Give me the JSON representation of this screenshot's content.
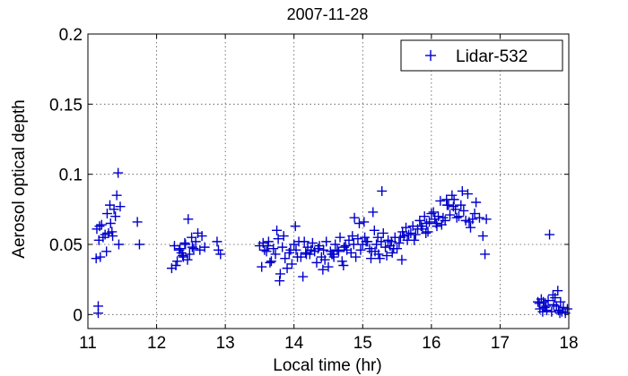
{
  "chart_data": {
    "type": "scatter",
    "title": "2007-11-28",
    "xlabel": "Local time (hr)",
    "ylabel": "Aerosol optical depth",
    "xlim": [
      11,
      18
    ],
    "ylim": [
      -0.01,
      0.2
    ],
    "xticks": [
      11,
      12,
      13,
      14,
      15,
      16,
      17,
      18
    ],
    "xtick_labels": [
      "11",
      "12",
      "13",
      "14",
      "15",
      "16",
      "17",
      "18"
    ],
    "yticks": [
      0,
      0.05,
      0.1,
      0.15,
      0.2
    ],
    "ytick_labels": [
      "0",
      "0.05",
      "0.1",
      "0.15",
      "0.2"
    ],
    "grid": true,
    "legend_position": "top-right",
    "series": [
      {
        "name": "Lidar-532",
        "marker": "plus",
        "color": "#0000cc",
        "x": [
          11.12,
          11.15,
          11.17,
          11.2,
          11.22,
          11.25,
          11.28,
          11.3,
          11.32,
          11.35,
          11.38,
          11.4,
          11.42,
          11.45,
          11.47,
          11.15,
          11.18,
          11.27,
          11.33,
          11.36,
          11.44,
          11.72,
          11.75,
          11.13,
          11.16,
          12.22,
          12.26,
          12.3,
          12.33,
          12.36,
          12.39,
          12.42,
          12.45,
          12.48,
          12.51,
          12.54,
          12.57,
          12.6,
          12.63,
          12.66,
          12.7,
          12.28,
          12.38,
          12.46,
          12.41,
          12.88,
          12.9,
          12.93,
          12.34,
          12.52,
          13.5,
          13.53,
          13.57,
          13.6,
          13.63,
          13.67,
          13.7,
          13.73,
          13.77,
          13.8,
          13.83,
          13.87,
          13.9,
          13.93,
          13.97,
          14.0,
          14.03,
          14.07,
          14.1,
          14.13,
          14.17,
          14.2,
          14.23,
          14.27,
          14.3,
          14.33,
          14.37,
          14.4,
          14.43,
          14.47,
          14.5,
          14.53,
          14.57,
          14.6,
          14.63,
          14.67,
          14.7,
          14.73,
          14.77,
          14.8,
          13.55,
          13.65,
          13.75,
          13.85,
          13.95,
          14.05,
          14.15,
          14.25,
          14.35,
          14.45,
          14.55,
          14.65,
          14.75,
          13.79,
          14.02,
          14.18,
          14.42,
          14.58,
          14.72,
          13.62,
          14.83,
          14.87,
          14.9,
          14.93,
          14.97,
          15.0,
          15.03,
          15.07,
          15.1,
          15.13,
          15.17,
          15.2,
          15.23,
          15.27,
          15.3,
          15.33,
          15.37,
          15.4,
          15.43,
          15.47,
          15.5,
          15.53,
          15.57,
          15.6,
          15.63,
          15.67,
          15.7,
          15.73,
          15.77,
          15.8,
          14.85,
          14.95,
          15.05,
          15.15,
          15.25,
          15.35,
          15.45,
          15.55,
          15.65,
          15.75,
          15.02,
          15.22,
          15.28,
          15.42,
          15.58,
          14.88,
          15.12,
          15.18,
          15.83,
          15.87,
          15.9,
          15.93,
          15.97,
          16.0,
          16.03,
          16.07,
          16.1,
          16.13,
          16.17,
          16.2,
          16.23,
          16.27,
          16.3,
          16.33,
          16.37,
          16.4,
          16.43,
          16.47,
          16.5,
          16.53,
          16.57,
          16.6,
          16.63,
          16.7,
          16.75,
          16.8,
          15.85,
          15.95,
          16.05,
          16.15,
          16.25,
          16.35,
          16.45,
          16.55,
          16.65,
          16.22,
          16.78,
          15.92,
          16.08,
          16.32,
          17.55,
          17.58,
          17.6,
          17.62,
          17.65,
          17.68,
          17.7,
          17.72,
          17.75,
          17.78,
          17.8,
          17.82,
          17.85,
          17.88,
          17.9,
          17.92,
          17.95,
          17.98,
          17.57,
          17.67,
          17.77,
          17.87,
          17.63,
          17.84
        ],
        "y": [
          0.04,
          0.006,
          0.063,
          0.064,
          0.055,
          0.057,
          0.072,
          0.058,
          0.078,
          0.059,
          0.075,
          0.07,
          0.085,
          0.05,
          0.077,
          0.001,
          0.041,
          0.045,
          0.065,
          0.056,
          0.101,
          0.066,
          0.05,
          0.061,
          0.053,
          0.033,
          0.049,
          0.038,
          0.046,
          0.044,
          0.041,
          0.05,
          0.039,
          0.043,
          0.055,
          0.047,
          0.052,
          0.058,
          0.046,
          0.056,
          0.048,
          0.035,
          0.042,
          0.068,
          0.051,
          0.052,
          0.046,
          0.043,
          0.047,
          0.048,
          0.049,
          0.034,
          0.046,
          0.045,
          0.052,
          0.038,
          0.047,
          0.043,
          0.054,
          0.029,
          0.048,
          0.04,
          0.033,
          0.044,
          0.036,
          0.05,
          0.046,
          0.052,
          0.041,
          0.027,
          0.044,
          0.048,
          0.043,
          0.051,
          0.045,
          0.037,
          0.049,
          0.041,
          0.046,
          0.052,
          0.034,
          0.045,
          0.043,
          0.05,
          0.046,
          0.055,
          0.038,
          0.048,
          0.046,
          0.053,
          0.051,
          0.037,
          0.06,
          0.056,
          0.046,
          0.041,
          0.052,
          0.046,
          0.047,
          0.039,
          0.043,
          0.045,
          0.049,
          0.024,
          0.063,
          0.043,
          0.032,
          0.041,
          0.035,
          0.049,
          0.044,
          0.05,
          0.041,
          0.054,
          0.046,
          0.05,
          0.055,
          0.052,
          0.047,
          0.045,
          0.06,
          0.05,
          0.043,
          0.052,
          0.058,
          0.048,
          0.053,
          0.049,
          0.044,
          0.055,
          0.047,
          0.051,
          0.039,
          0.056,
          0.062,
          0.057,
          0.058,
          0.063,
          0.057,
          0.061,
          0.056,
          0.065,
          0.052,
          0.073,
          0.04,
          0.042,
          0.047,
          0.055,
          0.053,
          0.053,
          0.066,
          0.055,
          0.088,
          0.052,
          0.059,
          0.069,
          0.04,
          0.045,
          0.067,
          0.061,
          0.07,
          0.065,
          0.066,
          0.072,
          0.073,
          0.065,
          0.07,
          0.081,
          0.069,
          0.067,
          0.078,
          0.071,
          0.085,
          0.082,
          0.069,
          0.07,
          0.078,
          0.074,
          0.067,
          0.086,
          0.062,
          0.068,
          0.072,
          0.069,
          0.056,
          0.068,
          0.063,
          0.059,
          0.068,
          0.064,
          0.078,
          0.075,
          0.088,
          0.066,
          0.08,
          0.082,
          0.043,
          0.058,
          0.063,
          0.077,
          0.009,
          0.004,
          0.011,
          0.002,
          0.005,
          0.003,
          0.01,
          0.057,
          0.002,
          0.007,
          0.012,
          0.006,
          0.003,
          0.009,
          0.002,
          0.005,
          0.001,
          0.004,
          0.008,
          0.006,
          0.014,
          0.001,
          0.009,
          0.017
        ]
      }
    ]
  }
}
